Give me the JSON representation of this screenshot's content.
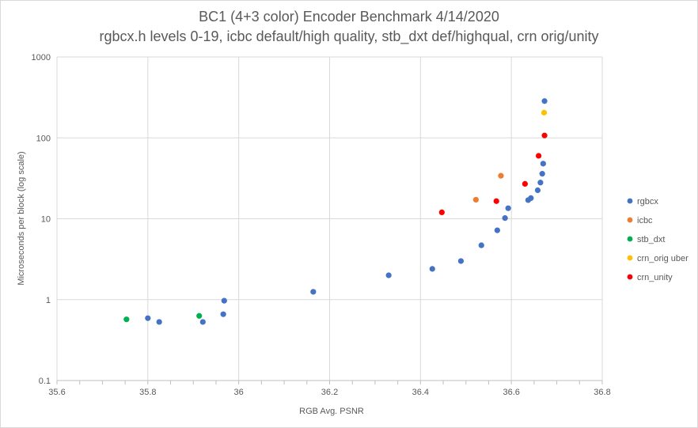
{
  "chart_data": {
    "type": "scatter",
    "title": "BC1 (4+3 color) Encoder Benchmark 4/14/2020",
    "subtitle": "rgbcx.h levels 0-19, icbc default/high quality, stb_dxt def/highqual, crn orig/unity",
    "xlabel": "RGB Avg. PSNR",
    "ylabel": "Microseconds per block (log scale)",
    "xlim": [
      35.6,
      36.8
    ],
    "ylim": [
      0.1,
      1000
    ],
    "yscale": "log",
    "grid": true,
    "legend_position": "right",
    "x_ticks": [
      "35.6",
      "35.8",
      "36",
      "36.2",
      "36.4",
      "36.6",
      "36.8"
    ],
    "x_tick_values": [
      35.6,
      35.8,
      36.0,
      36.2,
      36.4,
      36.6,
      36.8
    ],
    "y_ticks": [
      "0.1",
      "1",
      "10",
      "100",
      "1000"
    ],
    "y_tick_values": [
      0.1,
      1,
      10,
      100,
      1000
    ],
    "series": [
      {
        "name": "rgbcx",
        "color": "#4472c4",
        "points": [
          [
            35.8,
            0.59
          ],
          [
            35.825,
            0.53
          ],
          [
            35.921,
            0.53
          ],
          [
            35.966,
            0.66
          ],
          [
            35.968,
            0.97
          ],
          [
            36.164,
            1.25
          ],
          [
            36.33,
            2.0
          ],
          [
            36.426,
            2.4
          ],
          [
            36.489,
            3.0
          ],
          [
            36.534,
            4.7
          ],
          [
            36.569,
            7.2
          ],
          [
            36.586,
            10.2
          ],
          [
            36.593,
            13.5
          ],
          [
            36.637,
            17.0
          ],
          [
            36.643,
            18.0
          ],
          [
            36.658,
            22.5
          ],
          [
            36.664,
            28.0
          ],
          [
            36.668,
            36.0
          ],
          [
            36.67,
            48.0
          ],
          [
            36.673,
            285.0
          ]
        ]
      },
      {
        "name": "icbc",
        "color": "#ed7d31",
        "points": [
          [
            36.522,
            17.2
          ],
          [
            36.577,
            34.0
          ]
        ]
      },
      {
        "name": "stb_dxt",
        "color": "#00b050",
        "points": [
          [
            35.753,
            0.57
          ],
          [
            35.913,
            0.63
          ]
        ]
      },
      {
        "name": "crn_orig uber",
        "color": "#ffc000",
        "points": [
          [
            36.672,
            205.0
          ]
        ]
      },
      {
        "name": "crn_unity",
        "color": "#ff0000",
        "points": [
          [
            36.447,
            12.0
          ],
          [
            36.567,
            16.5
          ],
          [
            36.63,
            27.0
          ],
          [
            36.66,
            60.0
          ],
          [
            36.673,
            107.0
          ]
        ]
      }
    ]
  }
}
